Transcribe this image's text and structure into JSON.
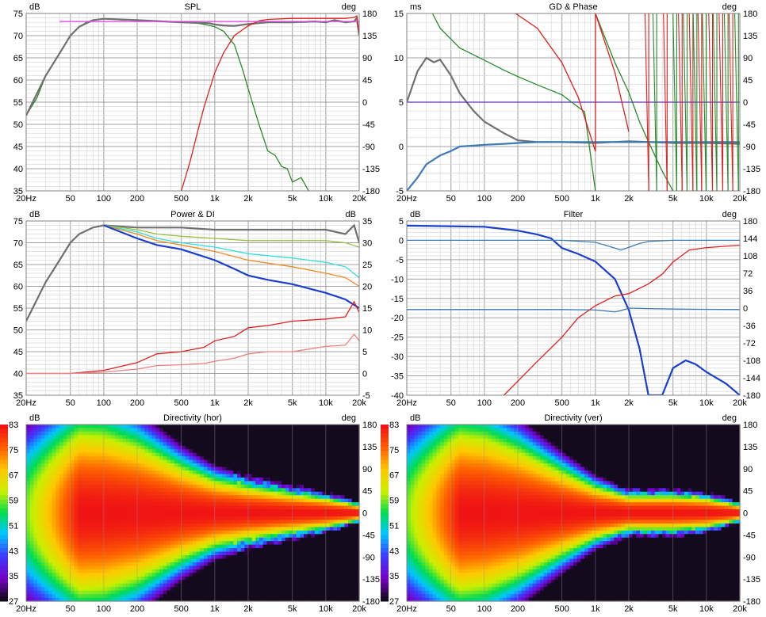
{
  "colors": {
    "grid_major": "#a0a0a0",
    "grid_minor": "#d8d8d8",
    "black": "#3c3c3c",
    "red": "#e02020",
    "green": "#2a8a2a",
    "magenta": "#e040e0",
    "gray": "#707070",
    "blue": "#1a3fcf",
    "steelblue": "#3d7ab8",
    "purple": "#6030c0",
    "olive": "#9ac040",
    "cyan": "#30e0e0",
    "orange": "#f08a20",
    "pink": "#f08080"
  },
  "chart_data": [
    {
      "id": "spl",
      "type": "line",
      "title": "SPL",
      "xlabel": "",
      "ylabel_left": "dB",
      "ylabel_right": "deg",
      "x_scale": "log",
      "xlim": [
        20,
        20000
      ],
      "ylim_left": [
        35,
        75
      ],
      "ylim_right": [
        -180,
        180
      ],
      "x_ticks": [
        "20Hz",
        "50",
        "100",
        "200",
        "500",
        "1k",
        "2k",
        "5k",
        "10k",
        "20k"
      ],
      "y_ticks_left": [
        "75",
        "70",
        "65",
        "60",
        "55",
        "50",
        "45",
        "40",
        "35"
      ],
      "y_ticks_right": [
        "180",
        "135",
        "90",
        "45",
        "0",
        "-45",
        "-90",
        "-135",
        "-180"
      ],
      "series": [
        {
          "color": "green",
          "axis": "left",
          "x": [
            20,
            25,
            30,
            40,
            50,
            60,
            70,
            80,
            100,
            150,
            200,
            300,
            500,
            700,
            900,
            1000,
            1200,
            1500,
            1800,
            2000,
            2500,
            3000,
            3500,
            4000,
            4500,
            5000,
            6000,
            7000
          ],
          "y": [
            52,
            56,
            61,
            66,
            70,
            72,
            73,
            73.5,
            73.8,
            73.5,
            73.5,
            73.3,
            73,
            72.8,
            72.3,
            72,
            71,
            68,
            62,
            58,
            50,
            44,
            43,
            40.5,
            40,
            37,
            38,
            35
          ]
        },
        {
          "color": "gray",
          "axis": "left",
          "x": [
            20,
            30,
            40,
            50,
            60,
            80,
            100,
            200,
            500,
            900,
            1000,
            1200,
            1500,
            2000,
            3000,
            5000,
            8000,
            10000,
            12000,
            15000,
            18000,
            19000,
            20000
          ],
          "y": [
            52,
            61,
            66,
            70,
            72,
            73.5,
            73.8,
            73.5,
            73,
            72.8,
            72.5,
            72.3,
            72.2,
            72.6,
            73,
            73,
            73.2,
            73,
            73.5,
            73,
            73.2,
            74,
            70
          ]
        },
        {
          "color": "red",
          "axis": "right",
          "x": [
            500,
            600,
            700,
            800,
            1000,
            1200,
            1500,
            2000,
            2500,
            3000,
            5000,
            10000,
            15000,
            18000,
            19000,
            20000
          ],
          "y": [
            -180,
            -120,
            -60,
            -10,
            60,
            100,
            135,
            155,
            165,
            168,
            170,
            170,
            170,
            172,
            175,
            140
          ]
        },
        {
          "color": "magenta",
          "axis": "left",
          "x": [
            40,
            100,
            200,
            500,
            1000,
            2000,
            5000,
            10000,
            20000
          ],
          "y": [
            73.2,
            73.2,
            73.2,
            73.2,
            73.2,
            73.2,
            73.2,
            73.2,
            73.2
          ]
        }
      ]
    },
    {
      "id": "gd_phase",
      "type": "line",
      "title": "GD & Phase",
      "xlabel": "",
      "ylabel_left": "ms",
      "ylabel_right": "deg",
      "x_scale": "log",
      "xlim": [
        20,
        20000
      ],
      "ylim_left": [
        -5,
        15
      ],
      "ylim_right": [
        -180,
        180
      ],
      "x_ticks": [
        "20Hz",
        "50",
        "100",
        "200",
        "500",
        "1k",
        "2k",
        "5k",
        "10k",
        "20k"
      ],
      "y_ticks_left": [
        "15",
        "10",
        "5",
        "0",
        "-5"
      ],
      "y_ticks_right": [
        "180",
        "135",
        "90",
        "45",
        "0",
        "-45",
        "-90",
        "-135",
        "-180"
      ],
      "series": [
        {
          "color": "gray",
          "axis": "left",
          "x": [
            20,
            25,
            30,
            35,
            40,
            50,
            60,
            80,
            100,
            150,
            200,
            300,
            500,
            1000,
            2000,
            5000,
            10000,
            20000
          ],
          "y": [
            5,
            8.5,
            10,
            9.5,
            9.8,
            8,
            6,
            4,
            2.8,
            1.5,
            0.7,
            0.5,
            0.5,
            0.4,
            0.6,
            0.4,
            0.4,
            0.3
          ]
        },
        {
          "color": "steelblue",
          "axis": "left",
          "x": [
            20,
            25,
            30,
            40,
            50,
            60,
            80,
            100,
            150,
            200,
            300,
            500,
            1000,
            2000,
            5000,
            10000,
            20000
          ],
          "y": [
            -5,
            -3.5,
            -2,
            -1,
            -0.5,
            0,
            0.1,
            0.2,
            0.3,
            0.4,
            0.5,
            0.5,
            0.5,
            0.5,
            0.5,
            0.5,
            0.5
          ]
        },
        {
          "color": "purple",
          "axis": "left",
          "x": [
            20,
            20000
          ],
          "y": [
            5,
            5
          ]
        },
        {
          "color": "green",
          "axis": "right",
          "x": [
            34,
            40,
            60,
            100,
            150,
            200,
            300,
            500,
            800,
            1000,
            1001,
            1500,
            2000,
            2500,
            3000,
            4000,
            5000
          ],
          "y": [
            180,
            150,
            110,
            85,
            65,
            52,
            35,
            15,
            -20,
            -180,
            180,
            80,
            20,
            -40,
            -80,
            -140,
            -180
          ]
        },
        {
          "color": "red",
          "axis": "right",
          "x": [
            190,
            191,
            300,
            500,
            700,
            1000,
            1001,
            1500,
            2000
          ],
          "y": [
            -180,
            180,
            150,
            80,
            10,
            -100,
            180,
            60,
            -60
          ]
        }
      ]
    },
    {
      "id": "power_di",
      "type": "line",
      "title": "Power & DI",
      "xlabel": "",
      "ylabel_left": "dB",
      "ylabel_right": "dB",
      "x_scale": "log",
      "xlim": [
        20,
        20000
      ],
      "ylim_left": [
        35,
        75
      ],
      "ylim_right": [
        -5,
        35
      ],
      "x_ticks": [
        "20Hz",
        "50",
        "100",
        "200",
        "500",
        "1k",
        "2k",
        "5k",
        "10k",
        "20k"
      ],
      "y_ticks_left": [
        "75",
        "70",
        "65",
        "60",
        "55",
        "50",
        "45",
        "40",
        "35"
      ],
      "y_ticks_right": [
        "35",
        "30",
        "25",
        "20",
        "15",
        "10",
        "5",
        "0",
        "-5"
      ],
      "series": [
        {
          "color": "gray",
          "axis": "left",
          "name": "",
          "x": [
            20,
            30,
            40,
            50,
            60,
            80,
            100,
            200,
            500,
            1000,
            2000,
            5000,
            10000,
            15000,
            18000,
            20000
          ],
          "y": [
            52,
            61,
            66,
            70,
            72,
            73.5,
            74,
            73.5,
            73.5,
            73,
            73,
            73,
            73,
            72,
            74,
            70
          ]
        },
        {
          "color": "olive",
          "axis": "left",
          "x": [
            100,
            200,
            300,
            500,
            1000,
            2000,
            5000,
            10000,
            15000,
            20000
          ],
          "y": [
            74,
            73,
            72,
            71.5,
            71,
            70.5,
            70.5,
            70.5,
            70,
            69
          ]
        },
        {
          "color": "cyan",
          "axis": "left",
          "x": [
            100,
            200,
            300,
            500,
            1000,
            2000,
            5000,
            10000,
            15000,
            20000
          ],
          "y": [
            74,
            72.5,
            71,
            70,
            69,
            67.5,
            66.5,
            65.5,
            64.5,
            62
          ]
        },
        {
          "color": "orange",
          "axis": "left",
          "x": [
            100,
            200,
            300,
            500,
            1000,
            2000,
            5000,
            10000,
            15000,
            20000
          ],
          "y": [
            74,
            72,
            70.5,
            69.5,
            68,
            66,
            64.5,
            63,
            62,
            60
          ]
        },
        {
          "color": "blue",
          "axis": "left",
          "x": [
            100,
            200,
            300,
            500,
            1000,
            1500,
            2000,
            3000,
            5000,
            10000,
            15000,
            20000
          ],
          "y": [
            74,
            71,
            69.5,
            68.5,
            66,
            64,
            62.5,
            61.5,
            60.5,
            58.5,
            57,
            55
          ]
        },
        {
          "color": "red",
          "axis": "right",
          "x": [
            20,
            50,
            100,
            200,
            300,
            500,
            800,
            1000,
            1500,
            2000,
            3000,
            5000,
            10000,
            15000,
            18000,
            20000
          ],
          "y": [
            0,
            0,
            0.7,
            2.5,
            4.5,
            5,
            6,
            7.5,
            8.5,
            10.5,
            11,
            12,
            12.5,
            13,
            16.5,
            14
          ]
        },
        {
          "color": "pink",
          "axis": "right",
          "x": [
            20,
            50,
            100,
            200,
            300,
            500,
            800,
            1000,
            1500,
            2000,
            3000,
            5000,
            10000,
            15000,
            18000,
            20000
          ],
          "y": [
            0,
            0,
            0.3,
            1,
            1.8,
            2,
            2.3,
            2.8,
            3.5,
            4.5,
            5,
            5,
            6.2,
            6.5,
            9,
            7.5
          ]
        }
      ]
    },
    {
      "id": "filter",
      "type": "line",
      "title": "Filter",
      "xlabel": "",
      "ylabel_left": "dB",
      "ylabel_right": "deg",
      "x_scale": "log",
      "xlim": [
        20,
        20000
      ],
      "ylim_left": [
        -40,
        5
      ],
      "ylim_right": [
        -180,
        180
      ],
      "x_ticks": [
        "20Hz",
        "50",
        "100",
        "200",
        "500",
        "1k",
        "2k",
        "5k",
        "10k",
        "20k"
      ],
      "y_ticks_left": [
        "5",
        "0",
        "-5",
        "-10",
        "-15",
        "-20",
        "-25",
        "-30",
        "-35",
        "-40"
      ],
      "y_ticks_right": [
        "180",
        "144",
        "108",
        "72",
        "36",
        "0",
        "-36",
        "-72",
        "-108",
        "-144",
        "-180"
      ],
      "series": [
        {
          "color": "blue",
          "axis": "left",
          "x": [
            20,
            100,
            200,
            300,
            400,
            500,
            700,
            1000,
            1500,
            2000,
            2500,
            3000,
            4000,
            5000,
            6500,
            8000,
            10000,
            15000,
            20000
          ],
          "y": [
            3.8,
            3.5,
            2.5,
            1.5,
            0.5,
            -2,
            -3.5,
            -5.5,
            -10,
            -18,
            -28,
            -40,
            -40,
            -33,
            -31,
            -32,
            -34,
            -37,
            -40
          ]
        },
        {
          "color": "steelblue",
          "axis": "left",
          "x": [
            20,
            500,
            1000,
            1500,
            1700,
            2000,
            2500,
            3000,
            5000,
            20000
          ],
          "y": [
            0,
            0,
            -0.5,
            -2,
            -2.5,
            -1.8,
            -0.8,
            -0.3,
            0,
            0
          ]
        },
        {
          "color": "steelblue",
          "axis": "right",
          "x": [
            20,
            500,
            1000,
            1500,
            1700,
            2000,
            3000,
            5000,
            20000
          ],
          "y": [
            -3,
            -3,
            -4,
            -8,
            -5,
            0,
            -1,
            -2,
            -3
          ]
        },
        {
          "color": "red",
          "axis": "right",
          "x": [
            150,
            300,
            500,
            700,
            1000,
            1500,
            2000,
            3000,
            4000,
            5000,
            7000,
            10000,
            20000
          ],
          "y": [
            -180,
            -110,
            -60,
            -20,
            5,
            25,
            30,
            50,
            70,
            95,
            120,
            125,
            130
          ]
        }
      ]
    },
    {
      "id": "dir_hor",
      "type": "heatmap",
      "title": "Directivity (hor)",
      "ylabel_left": "dB",
      "ylabel_right": "deg",
      "x_scale": "log",
      "xlim": [
        20,
        20000
      ],
      "ylim_right": [
        -180,
        180
      ],
      "colorbar_ticks": [
        "83",
        "75",
        "67",
        "59",
        "51",
        "43",
        "35",
        "27"
      ],
      "x_ticks": [
        "20Hz",
        "50",
        "100",
        "200",
        "500",
        "1k",
        "2k",
        "5k",
        "10k",
        "20k"
      ],
      "y_ticks_right": [
        "180",
        "135",
        "90",
        "45",
        "0",
        "-45",
        "-90",
        "-135",
        "-180"
      ],
      "beam_halfwidth_deg": {
        "x": [
          20,
          50,
          100,
          200,
          500,
          1000,
          2000,
          5000,
          10000,
          20000
        ],
        "y": [
          180,
          180,
          175,
          150,
          100,
          70,
          55,
          40,
          30,
          15
        ]
      }
    },
    {
      "id": "dir_ver",
      "type": "heatmap",
      "title": "Directivity (ver)",
      "ylabel_left": "dB",
      "ylabel_right": "deg",
      "x_scale": "log",
      "xlim": [
        20,
        20000
      ],
      "ylim_right": [
        -180,
        180
      ],
      "colorbar_ticks": [
        "83",
        "75",
        "67",
        "59",
        "51",
        "43",
        "35",
        "27"
      ],
      "x_ticks": [
        "20Hz",
        "50",
        "100",
        "200",
        "500",
        "1k",
        "2k",
        "5k",
        "10k",
        "20k"
      ],
      "y_ticks_right": [
        "180",
        "135",
        "90",
        "45",
        "0",
        "-45",
        "-90",
        "-135",
        "-180"
      ],
      "beam_halfwidth_deg": {
        "x": [
          20,
          50,
          100,
          200,
          500,
          1000,
          2000,
          5000,
          10000,
          20000
        ],
        "y": [
          180,
          180,
          170,
          140,
          90,
          55,
          35,
          35,
          30,
          15
        ]
      }
    }
  ]
}
